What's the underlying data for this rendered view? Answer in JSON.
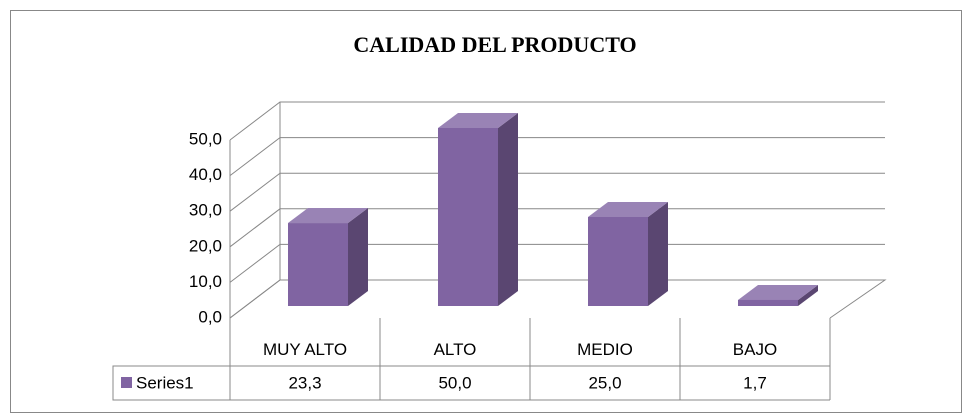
{
  "chart_data": {
    "type": "bar3d",
    "title": "CALIDAD DEL PRODUCTO",
    "categories": [
      "MUY ALTO",
      "ALTO",
      "MEDIO",
      "BAJO"
    ],
    "series": [
      {
        "name": "Series1",
        "color": "#8064a2",
        "values": [
          23.3,
          50.0,
          25.0,
          1.7
        ],
        "value_labels": [
          "23,3",
          "50,0",
          "25,0",
          "1,7"
        ]
      }
    ],
    "ylim": [
      0,
      50
    ],
    "yticks": [
      {
        "value": 0,
        "label": "0,0"
      },
      {
        "value": 10,
        "label": "10,0"
      },
      {
        "value": 20,
        "label": "20,0"
      },
      {
        "value": 30,
        "label": "30,0"
      },
      {
        "value": 40,
        "label": "40,0"
      },
      {
        "value": 50,
        "label": "50,0"
      }
    ],
    "grid": true,
    "data_table": true
  }
}
